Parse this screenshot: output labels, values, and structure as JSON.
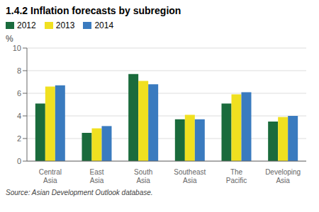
{
  "chart_data": {
    "type": "bar",
    "title": "1.4.2  Inflation forecasts by subregion",
    "categories": [
      "Central\nAsia",
      "East\nAsia",
      "South\nAsia",
      "Southeast\nAsia",
      "The\nPacific",
      "Developing\nAsia"
    ],
    "series": [
      {
        "name": "2012",
        "color": "#1a6b3c",
        "values": [
          5.1,
          2.5,
          7.7,
          3.7,
          5.1,
          3.5
        ]
      },
      {
        "name": "2013",
        "color": "#f0e020",
        "values": [
          6.6,
          2.9,
          7.1,
          4.1,
          5.9,
          3.9
        ]
      },
      {
        "name": "2014",
        "color": "#3a7bbf",
        "values": [
          6.7,
          3.1,
          6.8,
          3.7,
          6.1,
          4.0
        ]
      }
    ],
    "ylabel": "%",
    "ylim": [
      0,
      10
    ],
    "yticks": [
      0,
      2,
      4,
      6,
      8,
      10
    ],
    "grid": true,
    "legend": "top-left",
    "annotations": [
      "Source: Asian Development Outlook database."
    ]
  }
}
